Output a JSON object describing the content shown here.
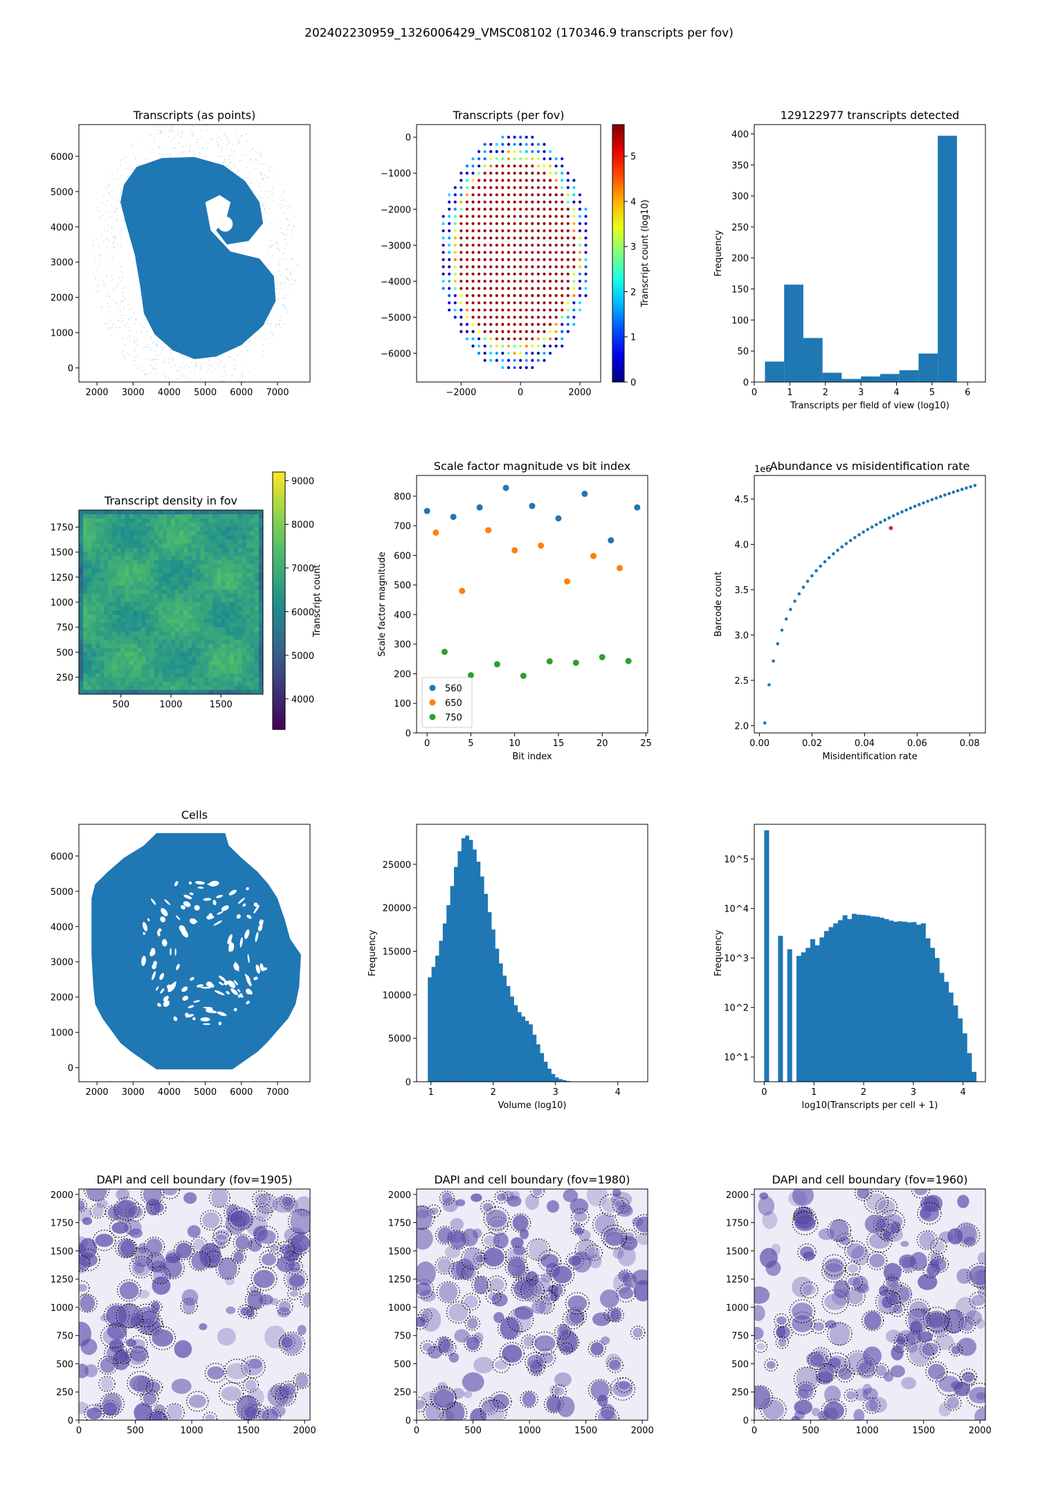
{
  "figure": {
    "suptitle": "202402230959_1326006429_VMSC08102 (170346.9 transcripts per fov)"
  },
  "colors": {
    "tab_blue": "#1f77b4",
    "tab_orange": "#ff7f0e",
    "tab_green": "#2ca02c",
    "highlight_red": "#d62728"
  },
  "chart_data": [
    {
      "id": "transcripts-points",
      "type": "scatter",
      "title": "Transcripts (as points)",
      "xlabel": "",
      "ylabel": "",
      "xlim": [
        1500,
        7900
      ],
      "ylim": [
        -400,
        6900
      ],
      "xticks": [
        2000,
        3000,
        4000,
        5000,
        6000,
        7000
      ],
      "yticks": [
        0,
        1000,
        2000,
        3000,
        4000,
        5000,
        6000
      ],
      "grid": false,
      "note_shape": "dense tissue section, kidney-shaped, approx x 2700-7000, y 200-5900"
    },
    {
      "id": "transcripts-per-fov",
      "type": "scatter",
      "title": "Transcripts (per fov)",
      "xlabel": "",
      "ylabel": "",
      "xlim": [
        -3500,
        2700
      ],
      "ylim": [
        -6800,
        350
      ],
      "xticks": [
        -2000,
        0,
        2000
      ],
      "yticks": [
        0,
        -1000,
        -2000,
        -3000,
        -4000,
        -5000,
        -6000
      ],
      "colorbar": {
        "label": "Transcript count (log10)",
        "min": 0,
        "max": 5.7,
        "ticks": [
          0,
          1,
          2,
          3,
          4,
          5
        ],
        "cmap": "jet"
      },
      "grid": false
    },
    {
      "id": "transcripts-histogram",
      "type": "bar",
      "title": "129122977 transcripts detected",
      "xlabel": "Transcripts per field of view (log10)",
      "ylabel": "Frequency",
      "xlim": [
        0,
        6.5
      ],
      "ylim": [
        0,
        415
      ],
      "xticks": [
        0,
        1,
        2,
        3,
        4,
        5,
        6
      ],
      "yticks": [
        0,
        50,
        100,
        150,
        200,
        250,
        300,
        350,
        400
      ],
      "bin_edges": [
        0.3,
        0.84,
        1.38,
        1.92,
        2.46,
        3.0,
        3.54,
        4.08,
        4.62,
        5.16,
        5.7
      ],
      "values": [
        33,
        157,
        71,
        15,
        5,
        9,
        13,
        19,
        46,
        397
      ]
    },
    {
      "id": "density-in-fov",
      "type": "heatmap",
      "title": "Transcript density in fov",
      "xlabel": "",
      "ylabel": "",
      "xlim": [
        80,
        1920
      ],
      "ylim": [
        80,
        1920
      ],
      "xticks": [
        500,
        1000,
        1500
      ],
      "yticks": [
        250,
        500,
        750,
        1000,
        1250,
        1500,
        1750
      ],
      "colorbar": {
        "label": "Transcript count",
        "min": 3300,
        "max": 9200,
        "ticks": [
          4000,
          5000,
          6000,
          7000,
          8000,
          9000
        ],
        "cmap": "viridis"
      }
    },
    {
      "id": "scale-factor",
      "type": "scatter",
      "title": "Scale factor magnitude vs bit index",
      "xlabel": "Bit index",
      "ylabel": "Scale factor magnitude",
      "xlim": [
        -1.2,
        25.2
      ],
      "ylim": [
        0,
        870
      ],
      "xticks": [
        0,
        5,
        10,
        15,
        20,
        25
      ],
      "yticks": [
        0,
        100,
        200,
        300,
        400,
        500,
        600,
        700,
        800
      ],
      "legend_position": "lower-left",
      "series": [
        {
          "name": "560",
          "x": [
            0,
            3,
            6,
            9,
            12,
            15,
            18,
            21,
            24
          ],
          "y": [
            750,
            730,
            762,
            828,
            767,
            725,
            808,
            651,
            762
          ]
        },
        {
          "name": "650",
          "x": [
            1,
            4,
            7,
            10,
            13,
            16,
            19,
            22
          ],
          "y": [
            677,
            480,
            685,
            617,
            633,
            512,
            598,
            557
          ]
        },
        {
          "name": "750",
          "x": [
            2,
            5,
            8,
            11,
            14,
            17,
            20,
            23
          ],
          "y": [
            274,
            195,
            232,
            193,
            242,
            237,
            256,
            243
          ]
        }
      ]
    },
    {
      "id": "abundance-misid",
      "type": "scatter",
      "title": "Abundance vs misidentification rate",
      "xlabel": "Misidentification rate",
      "ylabel": "Barcode count",
      "offset_label": "1e6",
      "xlim": [
        -0.002,
        0.086
      ],
      "ylim": [
        1.92,
        4.76
      ],
      "xticks": [
        0.0,
        0.02,
        0.04,
        0.06,
        0.08
      ],
      "xtick_labels": [
        "0.00",
        "0.02",
        "0.04",
        "0.06",
        "0.08"
      ],
      "yticks": [
        2.0,
        2.5,
        3.0,
        3.5,
        4.0,
        4.5
      ],
      "ytick_labels": [
        "2.0",
        "2.5",
        "3.0",
        "3.5",
        "4.0",
        "4.5"
      ],
      "curve": {
        "x_start": 0.002,
        "x_end": 0.082,
        "n_points": 50,
        "y_start": 2.03,
        "y_end": 4.65
      },
      "highlight_point": {
        "x": 0.05,
        "y": 4.18
      }
    },
    {
      "id": "cells",
      "type": "scatter",
      "title": "Cells",
      "xlabel": "",
      "ylabel": "",
      "xlim": [
        1500,
        7900
      ],
      "ylim": [
        -400,
        6900
      ],
      "xticks": [
        2000,
        3000,
        4000,
        5000,
        6000,
        7000
      ],
      "yticks": [
        0,
        1000,
        2000,
        3000,
        4000,
        5000,
        6000
      ],
      "note_shape": "tiled field-of-view mask, approx x 1850-7650, y -50-6650, with white gaps"
    },
    {
      "id": "volume-hist",
      "type": "bar",
      "title": "",
      "xlabel": "Volume (log10)",
      "ylabel": "Frequency",
      "xlim": [
        0.77,
        4.48
      ],
      "ylim": [
        0,
        29600
      ],
      "xticks": [
        1,
        2,
        3,
        4
      ],
      "yticks": [
        0,
        5000,
        10000,
        15000,
        20000,
        25000
      ],
      "bin_start": 0.95,
      "bin_width": 0.06,
      "values": [
        12000,
        13200,
        14500,
        16200,
        18200,
        20300,
        22500,
        24700,
        26500,
        28000,
        28300,
        27800,
        26700,
        25300,
        23600,
        21600,
        19500,
        17500,
        15300,
        13600,
        12200,
        11000,
        9800,
        8800,
        8000,
        7500,
        7000,
        6600,
        5400,
        4300,
        3300,
        2300,
        1500,
        900,
        500,
        300,
        180,
        90,
        40,
        20
      ]
    },
    {
      "id": "transcripts-per-cell",
      "type": "bar",
      "title": "",
      "xlabel": "log10(Transcripts per cell + 1)",
      "ylabel": "Frequency",
      "log_y": true,
      "xlim": [
        -0.2,
        4.45
      ],
      "ylim_log10": [
        0.5,
        5.7
      ],
      "xticks": [
        0,
        1,
        2,
        3,
        4
      ],
      "ytick_labels": [
        "10^1",
        "10^2",
        "10^3",
        "10^4",
        "10^5"
      ],
      "bin_start": 0.0,
      "bin_width": 0.0927,
      "values": [
        380000,
        0,
        0,
        2800,
        0,
        1500,
        0,
        1100,
        1300,
        1600,
        2400,
        1800,
        2600,
        3500,
        4200,
        5000,
        5800,
        7300,
        6100,
        7800,
        7500,
        7400,
        7200,
        6900,
        6800,
        6500,
        6100,
        5700,
        5400,
        5500,
        5400,
        5200,
        5300,
        4700,
        5000,
        2500,
        1600,
        1000,
        500,
        330,
        200,
        110,
        60,
        30,
        12,
        5
      ]
    },
    {
      "id": "dapi-1905",
      "type": "heatmap",
      "title": "DAPI and cell boundary (fov=1905)",
      "xlabel": "",
      "ylabel": "",
      "xlim": [
        0,
        2048
      ],
      "ylim": [
        0,
        2048
      ],
      "xticks": [
        0,
        500,
        1000,
        1500,
        2000
      ],
      "yticks": [
        0,
        250,
        500,
        750,
        1000,
        1250,
        1500,
        1750,
        2000
      ]
    },
    {
      "id": "dapi-1980",
      "type": "heatmap",
      "title": "DAPI and cell boundary (fov=1980)",
      "xlabel": "",
      "ylabel": "",
      "xlim": [
        0,
        2048
      ],
      "ylim": [
        0,
        2048
      ],
      "xticks": [
        0,
        500,
        1000,
        1500,
        2000
      ],
      "yticks": [
        0,
        250,
        500,
        750,
        1000,
        1250,
        1500,
        1750,
        2000
      ]
    },
    {
      "id": "dapi-1960",
      "type": "heatmap",
      "title": "DAPI and cell boundary (fov=1960)",
      "xlabel": "",
      "ylabel": "",
      "xlim": [
        0,
        2048
      ],
      "ylim": [
        0,
        2048
      ],
      "xticks": [
        0,
        500,
        1000,
        1500,
        2000
      ],
      "yticks": [
        0,
        250,
        500,
        750,
        1000,
        1250,
        1500,
        1750,
        2000
      ]
    }
  ]
}
